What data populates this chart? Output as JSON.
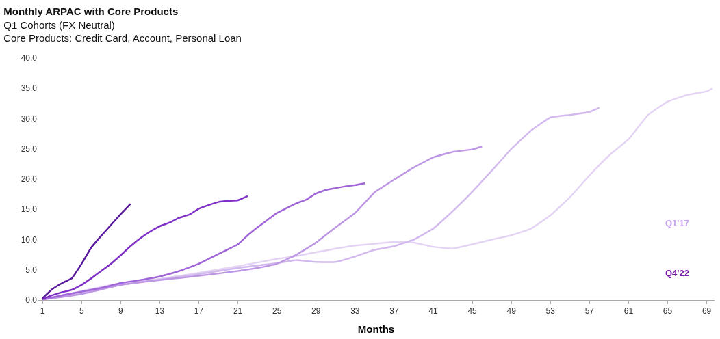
{
  "chart_data": {
    "type": "line",
    "title": "Monthly ARPAC with Core Products",
    "subtitle": "Q1 Cohorts (FX Neutral)\nCore Products: Credit Card, Account, Personal Loan",
    "xlabel": "Months",
    "xlim": [
      0.5,
      69.8
    ],
    "xticks": [
      1,
      5,
      9,
      13,
      17,
      21,
      25,
      29,
      33,
      37,
      41,
      45,
      49,
      53,
      57,
      61,
      65,
      69
    ],
    "ylim": [
      0,
      40
    ],
    "yticks": [
      {
        "value": 0,
        "label": "0.0"
      },
      {
        "value": 5,
        "label": "5.0"
      },
      {
        "value": 10,
        "label": "10.0"
      },
      {
        "value": 15,
        "label": "15.0"
      },
      {
        "value": 20,
        "label": "20.0"
      },
      {
        "value": 25,
        "label": "25.0"
      },
      {
        "value": 30,
        "label": "30.0"
      },
      {
        "value": 35,
        "label": "35.0"
      },
      {
        "value": 40,
        "label": "40.0"
      }
    ],
    "annotations": [
      "Q1'17",
      "Q4'22"
    ],
    "series": [
      {
        "color": "#e4d4f4",
        "x": [
          1,
          5,
          9,
          13,
          17,
          21,
          25,
          27,
          29,
          31,
          33,
          35,
          37,
          39,
          41,
          43,
          45,
          47,
          49,
          51,
          53,
          55,
          57,
          59,
          61,
          63,
          65,
          67,
          69,
          69.6
        ],
        "values": [
          0.1,
          1.5,
          2.8,
          3.5,
          4.5,
          5.6,
          6.8,
          7.3,
          7.9,
          8.5,
          9.0,
          9.3,
          9.6,
          9.5,
          8.8,
          8.5,
          9.2,
          10.0,
          10.7,
          11.8,
          14.0,
          17.0,
          20.6,
          23.9,
          26.6,
          30.6,
          32.8,
          33.9,
          34.5,
          35.0
        ]
      },
      {
        "color": "#d3baee",
        "x": [
          1,
          5,
          9,
          13,
          17,
          21,
          25,
          27,
          29,
          31,
          33,
          35,
          37,
          39,
          41,
          43,
          45,
          47,
          49,
          51,
          53,
          55,
          57,
          58
        ],
        "values": [
          0.1,
          1.2,
          2.5,
          3.4,
          4.3,
          5.3,
          6.1,
          6.6,
          6.3,
          6.3,
          7.2,
          8.3,
          8.9,
          10.0,
          11.8,
          14.7,
          17.9,
          21.4,
          25.0,
          28.0,
          30.2,
          30.6,
          31.1,
          31.8
        ]
      },
      {
        "color": "#bd96e4",
        "x": [
          1,
          5,
          9,
          13,
          17,
          21,
          23,
          25,
          27,
          29,
          31,
          33,
          35,
          37,
          39,
          41,
          43,
          45,
          46
        ],
        "values": [
          0.1,
          1.0,
          2.5,
          3.3,
          4.0,
          4.8,
          5.3,
          6.0,
          7.5,
          9.5,
          12.0,
          14.4,
          17.8,
          19.9,
          21.9,
          23.6,
          24.5,
          24.9,
          25.4
        ]
      },
      {
        "color": "#a066d8",
        "x": [
          1,
          3,
          5,
          7,
          9,
          11,
          13,
          15,
          17,
          19,
          21,
          22,
          23,
          24,
          25,
          26,
          27,
          28,
          29,
          30,
          31,
          32,
          33,
          34
        ],
        "values": [
          0.1,
          0.8,
          1.4,
          2.0,
          2.8,
          3.3,
          3.9,
          4.8,
          6.0,
          7.6,
          9.2,
          10.7,
          12.0,
          13.2,
          14.4,
          15.2,
          16.0,
          16.6,
          17.6,
          18.2,
          18.5,
          18.8,
          19.0,
          19.3
        ]
      },
      {
        "color": "#7f30c6",
        "x": [
          1,
          2,
          3,
          4,
          5,
          6,
          7,
          8,
          9,
          10,
          11,
          12,
          13,
          14,
          15,
          16,
          17,
          18,
          19,
          20,
          21,
          22
        ],
        "values": [
          0.2,
          0.8,
          1.3,
          1.7,
          2.5,
          3.6,
          4.8,
          6.0,
          7.4,
          8.9,
          10.2,
          11.3,
          12.2,
          12.8,
          13.6,
          14.1,
          15.1,
          15.7,
          16.2,
          16.4,
          16.5,
          17.2
        ]
      },
      {
        "color": "#5a1a9e",
        "x": [
          1,
          2,
          3,
          4,
          5,
          6,
          7,
          8,
          9,
          10
        ],
        "values": [
          0.3,
          1.8,
          2.8,
          3.6,
          6.0,
          8.7,
          10.6,
          12.4,
          14.2,
          15.9
        ]
      }
    ]
  }
}
